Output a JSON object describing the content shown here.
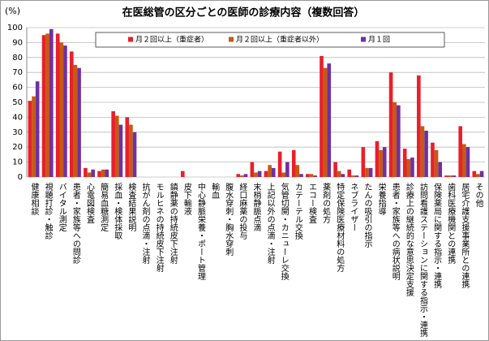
{
  "chart_data": {
    "type": "bar",
    "title": "在医総管の区分ごとの医師の診療内容（複数回答）",
    "y_label": "(%)",
    "categories": [
      "健康相談",
      "視聴打診・触診",
      "バイタル測定",
      "患者・家族等への問診",
      "心電図検査",
      "簡易血糖測定",
      "採血・検体採取",
      "検査結果説明",
      "抗がん剤の点滴・注射",
      "モルヒネの持続皮下注射",
      "鎮静薬の持続皮下注射",
      "皮下輸液",
      "中心静脈栄養・ポート管理",
      "輸血",
      "腹水穿刺・胸水穿刺",
      "経口麻薬の投与",
      "末梢静脈点滴",
      "上記以外の点滴・注射",
      "気管切開・カニューレ交換",
      "カテーテル交換",
      "エコー検査",
      "薬剤の処方",
      "特定保険医療材料の処方",
      "ネブライザー",
      "たんの吸引の指示",
      "栄養指導",
      "患者・家族等への病状説明",
      "診療上の継続的な意思決定支援",
      "訪問看護ステーションに関する指示・連携",
      "保険薬局に関する指示・連携",
      "歯科医療機関との連携",
      "居宅介護支援事業所との連携",
      "その他"
    ],
    "series": [
      {
        "name": "月２回以上（重症者）",
        "color": "#e8202a",
        "values": [
          51,
          95,
          96,
          84,
          6,
          4,
          44,
          40,
          0,
          0,
          0,
          4,
          0,
          0,
          0,
          2,
          10,
          4,
          17,
          18,
          2,
          81,
          10,
          5,
          20,
          24,
          70,
          19,
          68,
          23,
          1,
          34,
          4
        ]
      },
      {
        "name": "月２回以上（重症者以外）",
        "color": "#c55a11",
        "values": [
          54,
          96,
          90,
          75,
          3,
          5,
          41,
          35,
          0,
          0,
          0,
          0,
          0,
          0,
          0,
          1,
          3,
          8,
          3,
          8,
          2,
          73,
          4,
          1,
          6,
          18,
          50,
          12,
          34,
          18,
          1,
          22,
          2
        ]
      },
      {
        "name": "月１回",
        "color": "#7030a0",
        "values": [
          64,
          99,
          88,
          73,
          5,
          5,
          35,
          30,
          0,
          0,
          0,
          0,
          0,
          0,
          0,
          2,
          4,
          6,
          10,
          2,
          1,
          76,
          2,
          1,
          6,
          20,
          48,
          13,
          31,
          10,
          1,
          20,
          4
        ]
      }
    ],
    "ylim": [
      0,
      100
    ],
    "yticks": [
      0,
      10,
      20,
      30,
      40,
      50,
      60,
      70,
      80,
      90,
      100
    ],
    "grid": true,
    "legend": "top"
  }
}
